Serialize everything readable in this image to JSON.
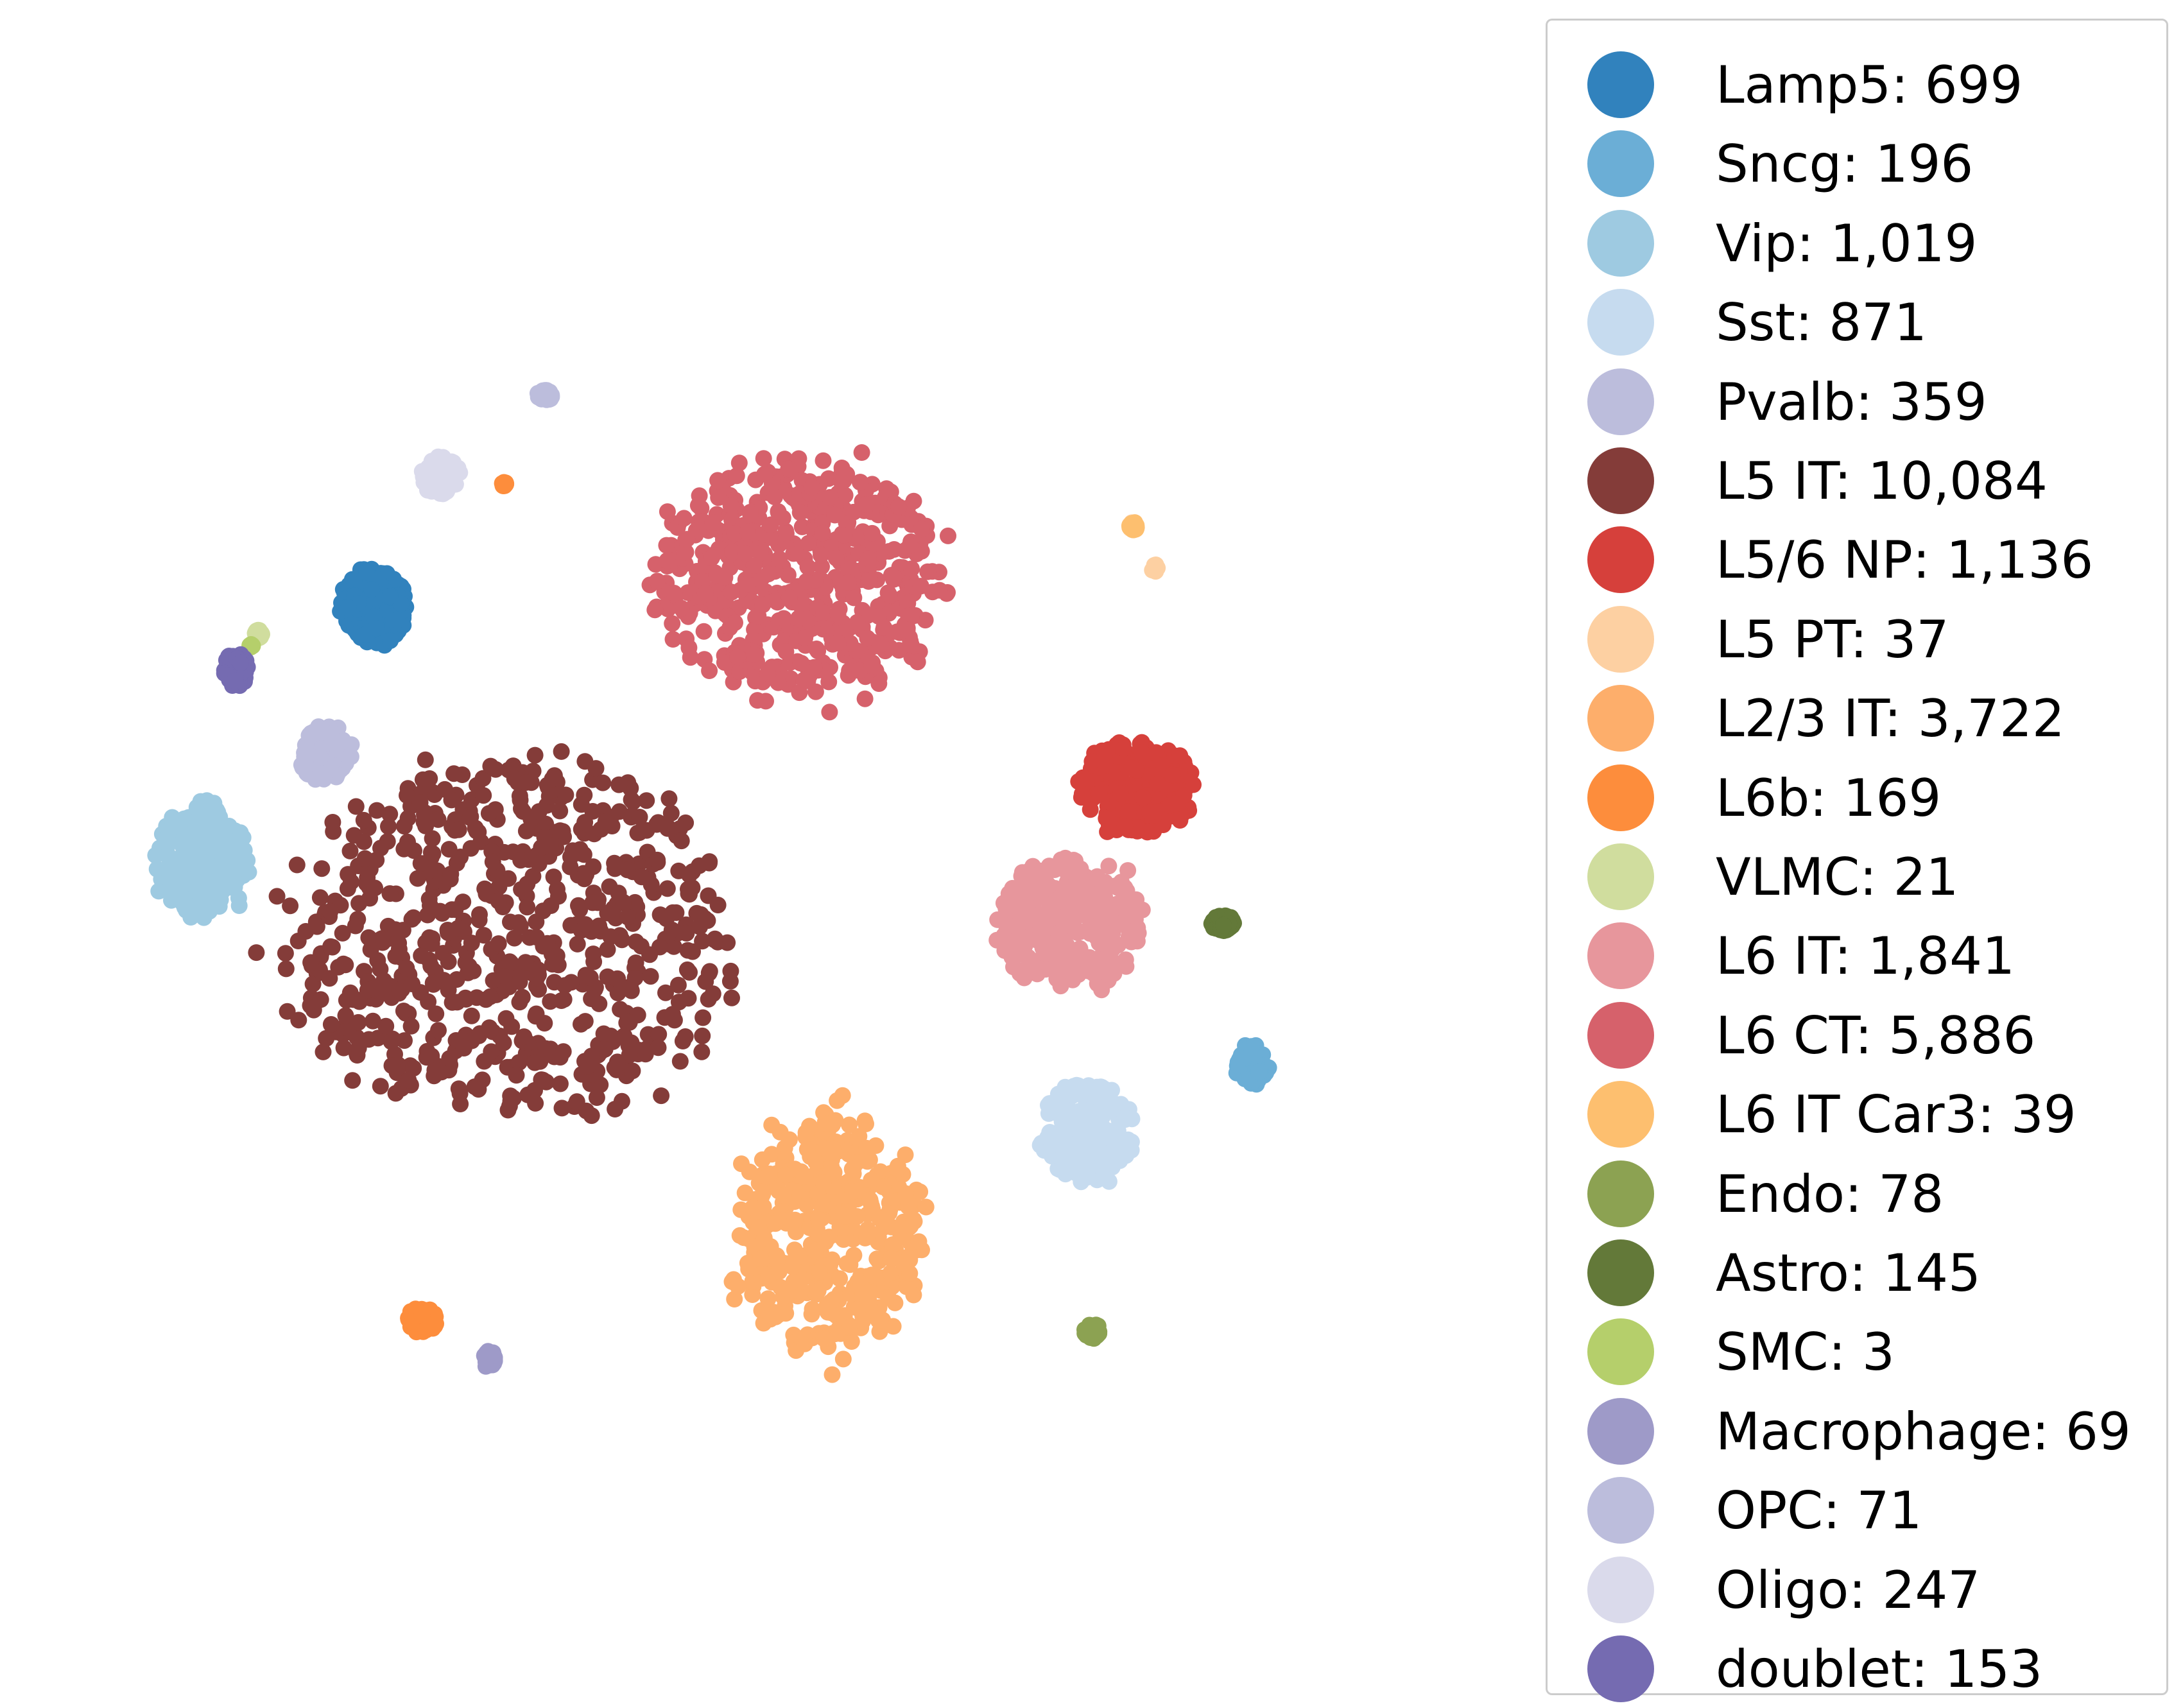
{
  "chart_data": {
    "type": "scatter",
    "title": "",
    "xlabel": "",
    "ylabel": "",
    "axes_visible": false,
    "grid": false,
    "legend_placement": "right",
    "series": [
      {
        "name": "Lamp5: 699",
        "label": "Lamp5",
        "count": 699,
        "color": "#3182bd",
        "clusters": [
          {
            "center": [
              -7.2,
              6.4
            ],
            "spread": [
              0.9,
              1.0
            ]
          }
        ]
      },
      {
        "name": "Sncg: 196",
        "label": "Sncg",
        "count": 196,
        "color": "#6baed6",
        "clusters": [
          {
            "center": [
              16.4,
              -5.5
            ],
            "spread": [
              0.4,
              0.5
            ]
          }
        ]
      },
      {
        "name": "Vip: 1,019",
        "label": "Vip",
        "count": 1019,
        "color": "#9ecae1",
        "clusters": [
          {
            "center": [
              -11.8,
              -0.2
            ],
            "spread": [
              1.2,
              1.5
            ]
          }
        ]
      },
      {
        "name": "Sst: 871",
        "label": "Sst",
        "count": 871,
        "color": "#c6dbef",
        "clusters": [
          {
            "center": [
              12.0,
              -7.2
            ],
            "spread": [
              1.2,
              1.3
            ]
          }
        ]
      },
      {
        "name": "Pvalb: 359",
        "label": "Pvalb",
        "count": 359,
        "color": "#bcbddc",
        "clusters": [
          {
            "center": [
              -8.5,
              2.6
            ],
            "spread": [
              0.7,
              0.7
            ]
          }
        ]
      },
      {
        "name": "L5 IT: 10,084",
        "label": "L5 IT",
        "count": 10084,
        "color": "#843c39",
        "clusters": [
          {
            "center": [
              -3.5,
              -2.2
            ],
            "spread": [
              5.8,
              4.6
            ]
          }
        ]
      },
      {
        "name": "L5/6 NP: 1,136",
        "label": "L5/6 NP",
        "count": 1136,
        "color": "#d6403b",
        "clusters": [
          {
            "center": [
              13.3,
              1.7
            ],
            "spread": [
              1.5,
              1.2
            ]
          }
        ]
      },
      {
        "name": "L5 PT: 37",
        "label": "L5 PT",
        "count": 37,
        "color": "#fdd0a2",
        "clusters": [
          {
            "center": [
              13.2,
              8.5
            ],
            "spread": [
              0.1,
              0.1
            ]
          },
          {
            "center": [
              13.8,
              7.4
            ],
            "spread": [
              0.1,
              0.1
            ]
          }
        ]
      },
      {
        "name": "L2/3 IT: 3,722",
        "label": "L2/3 IT",
        "count": 3722,
        "color": "#fdae6b",
        "clusters": [
          {
            "center": [
              5.0,
              -9.8
            ],
            "spread": [
              2.5,
              3.0
            ]
          }
        ]
      },
      {
        "name": "L6b: 169",
        "label": "L6b",
        "count": 169,
        "color": "#fd8d3c",
        "clusters": [
          {
            "center": [
              -5.9,
              -12.1
            ],
            "spread": [
              0.4,
              0.3
            ]
          },
          {
            "center": [
              -3.7,
              9.6
            ],
            "spread": [
              0.05,
              0.05
            ]
          }
        ]
      },
      {
        "name": "VLMC: 21",
        "label": "VLMC",
        "count": 21,
        "color": "#d0dd9e",
        "clusters": [
          {
            "center": [
              -10.3,
              5.7
            ],
            "spread": [
              0.1,
              0.1
            ]
          }
        ]
      },
      {
        "name": "L6 IT: 1,841",
        "label": "L6 IT",
        "count": 1841,
        "color": "#e7969c",
        "clusters": [
          {
            "center": [
              11.5,
              -1.8
            ],
            "spread": [
              1.9,
              1.7
            ]
          }
        ]
      },
      {
        "name": "L6 CT: 5,886",
        "label": "L6 CT",
        "count": 5886,
        "color": "#d6616b",
        "clusters": [
          {
            "center": [
              4.2,
              7.2
            ],
            "spread": [
              3.8,
              3.1
            ]
          }
        ]
      },
      {
        "name": "L6 IT Car3: 39",
        "label": "L6 IT Car3",
        "count": 39,
        "color": "#fdbf6f",
        "clusters": [
          {
            "center": [
              13.2,
              8.5
            ],
            "spread": [
              0.1,
              0.1
            ]
          }
        ]
      },
      {
        "name": "Endo: 78",
        "label": "Endo",
        "count": 78,
        "color": "#8ca252",
        "clusters": [
          {
            "center": [
              12.1,
              -12.4
            ],
            "spread": [
              0.2,
              0.2
            ]
          }
        ]
      },
      {
        "name": "Astro: 145",
        "label": "Astro",
        "count": 145,
        "color": "#637939",
        "clusters": [
          {
            "center": [
              15.6,
              -1.8
            ],
            "spread": [
              0.3,
              0.2
            ]
          }
        ]
      },
      {
        "name": "SMC: 3",
        "label": "SMC",
        "count": 3,
        "color": "#b5cf6b",
        "clusters": [
          {
            "center": [
              -10.5,
              5.4
            ],
            "spread": [
              0.05,
              0.05
            ]
          }
        ]
      },
      {
        "name": "Macrophage: 69",
        "label": "Macrophage",
        "count": 69,
        "color": "#9e9ac8",
        "clusters": [
          {
            "center": [
              -4.1,
              -13.1
            ],
            "spread": [
              0.15,
              0.2
            ]
          }
        ]
      },
      {
        "name": "OPC: 71",
        "label": "OPC",
        "count": 71,
        "color": "#bcbddc",
        "clusters": [
          {
            "center": [
              -2.6,
              11.9
            ],
            "spread": [
              0.2,
              0.15
            ]
          }
        ]
      },
      {
        "name": "Oligo: 247",
        "label": "Oligo",
        "count": 247,
        "color": "#dadaeb",
        "clusters": [
          {
            "center": [
              -5.4,
              9.8
            ],
            "spread": [
              0.5,
              0.5
            ]
          }
        ]
      },
      {
        "name": "doublet: 153",
        "label": "doublet",
        "count": 153,
        "color": "#756bb1",
        "clusters": [
          {
            "center": [
              -10.9,
              4.8
            ],
            "spread": [
              0.3,
              0.4
            ]
          }
        ]
      }
    ]
  }
}
